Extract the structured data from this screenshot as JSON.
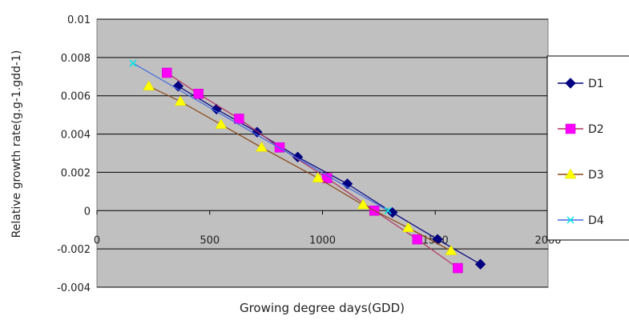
{
  "chart_data": {
    "type": "line",
    "title": "",
    "xlabel": "Growing degree days(GDD)",
    "ylabel": "Relative growth rate(g.g-1.gdd-1)",
    "xlim": [
      0,
      2000
    ],
    "ylim": [
      -0.004,
      0.01
    ],
    "x_ticks": [
      "0",
      "500",
      "1000",
      "1500",
      "2000"
    ],
    "y_ticks": [
      "-0.004",
      "-0.002",
      "0",
      "0.002",
      "0.004",
      "0.006",
      "0.008",
      "0.01"
    ],
    "grid": true,
    "legend_position": "right",
    "colors": {
      "plot_background": "#c0c0c0",
      "grid": "#000000",
      "D1": "#000080",
      "D2": "#ff00ff",
      "D3": "#ffff00",
      "D4": "#00e5e5",
      "D2_line": "#b03060",
      "D3_line": "#8b4513",
      "D4_line": "#4169e1"
    },
    "series": [
      {
        "name": "D1",
        "marker": "diamond",
        "x": [
          360,
          530,
          710,
          890,
          1110,
          1310,
          1510,
          1700
        ],
        "y": [
          0.0065,
          0.0053,
          0.0041,
          0.0028,
          0.0014,
          -0.0001,
          -0.0015,
          -0.0028
        ]
      },
      {
        "name": "D2",
        "marker": "square",
        "x": [
          310,
          450,
          630,
          810,
          1020,
          1230,
          1420,
          1600
        ],
        "y": [
          0.0072,
          0.0061,
          0.0048,
          0.0033,
          0.0017,
          0.0,
          -0.0015,
          -0.003
        ]
      },
      {
        "name": "D3",
        "marker": "triangle",
        "x": [
          230,
          370,
          550,
          730,
          980,
          1180,
          1380,
          1570
        ],
        "y": [
          0.0065,
          0.0057,
          0.0045,
          0.0033,
          0.0017,
          0.0003,
          -0.0009,
          -0.0021
        ]
      },
      {
        "name": "D4",
        "marker": "x",
        "x": [
          160,
          1290
        ],
        "y": [
          0.0077,
          0.0
        ]
      }
    ]
  }
}
